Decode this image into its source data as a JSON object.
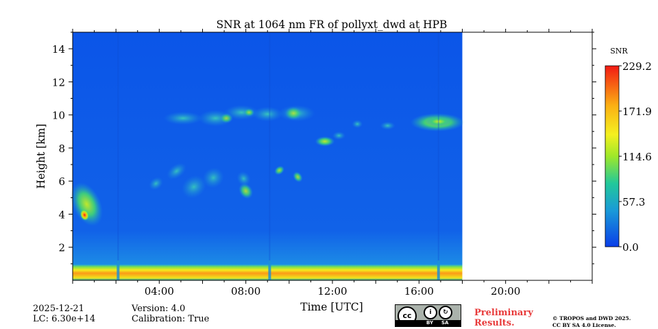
{
  "chart_data": {
    "type": "heatmap",
    "title": "SNR at 1064 nm FR of pollyxt_dwd at HPB",
    "xlabel": "Time [UTC]",
    "ylabel": "Height [km]",
    "x_range_hours": [
      0,
      24
    ],
    "x_ticks": [
      "04:00",
      "08:00",
      "12:00",
      "16:00",
      "20:00"
    ],
    "x_tick_hours": [
      4,
      8,
      12,
      16,
      20
    ],
    "y_range_km": [
      0,
      15
    ],
    "y_ticks": [
      "2",
      "4",
      "6",
      "8",
      "10",
      "12",
      "14"
    ],
    "y_tick_values": [
      2,
      4,
      6,
      8,
      10,
      12,
      14
    ],
    "data_end_hour": 18,
    "colorbar": {
      "label": "SNR",
      "range": [
        0.0,
        229.2
      ],
      "ticks": [
        "0.0",
        "57.3",
        "114.6",
        "171.9",
        "229.2"
      ],
      "tick_values": [
        0.0,
        57.3,
        114.6,
        171.9,
        229.2
      ]
    },
    "features": [
      {
        "name": "surface-layer",
        "start_hour": 0,
        "end_hour": 18,
        "height_km": 0.5,
        "snr": 165
      },
      {
        "name": "low-cloud-plume",
        "start_hour": 0,
        "end_hour": 1.2,
        "height_km": 4.5,
        "snr": 229
      },
      {
        "name": "mid-cloud-streaks",
        "start_hour": 4.5,
        "end_hour": 10.5,
        "height_km": 6.0,
        "snr": 95
      },
      {
        "name": "cloud-patch-1130",
        "start_hour": 11.3,
        "end_hour": 12.0,
        "height_km": 8.4,
        "snr": 110
      },
      {
        "name": "cirrus-layer",
        "start_hour": 4.5,
        "end_hour": 11.0,
        "height_km": 9.8,
        "snr": 80
      },
      {
        "name": "cirrus-1600",
        "start_hour": 16.0,
        "end_hour": 18.0,
        "height_km": 9.6,
        "snr": 140
      }
    ]
  },
  "footer": {
    "date": "2025-12-21",
    "lc": "LC: 6.30e+14",
    "version": "Version: 4.0",
    "calibration": "Calibration: True",
    "preliminary": "Preliminary",
    "results": "Results.",
    "copyright_line1": "© TROPOS and DWD 2025.",
    "copyright_line2": "CC BY SA 4.0 License.",
    "cc_label": "cc",
    "cc_by": "BY",
    "cc_sa": "SA"
  }
}
